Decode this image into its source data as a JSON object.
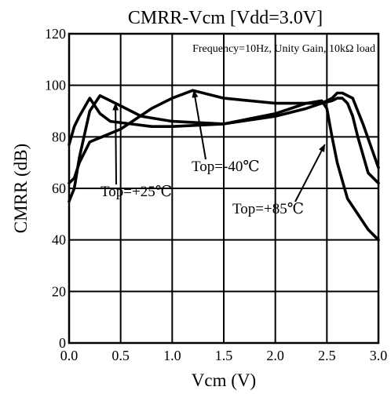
{
  "chart_data": {
    "type": "line",
    "title": "CMRR-Vcm [Vdd=3.0V]",
    "subtitle": "Frequency=10Hz, Unity Gain, 10kΩ load",
    "xlabel": "Vcm (V)",
    "ylabel": "CMRR (dB)",
    "xlim": [
      0.0,
      3.0
    ],
    "ylim": [
      0,
      120
    ],
    "xticks": [
      "0.0",
      "0.5",
      "1.0",
      "1.5",
      "2.0",
      "2.5",
      "3.0"
    ],
    "yticks": [
      "0",
      "20",
      "40",
      "60",
      "80",
      "100",
      "120"
    ],
    "grid": true,
    "series": [
      {
        "name": "Top=-40℃",
        "x": [
          0.0,
          0.05,
          0.1,
          0.2,
          0.5,
          0.8,
          1.0,
          1.2,
          1.5,
          2.0,
          2.3,
          2.45,
          2.55,
          2.6,
          2.65,
          2.7,
          2.75,
          2.8,
          2.85,
          2.9,
          3.0
        ],
        "y": [
          62,
          64,
          70,
          78,
          83,
          91,
          95,
          98,
          95,
          93,
          93,
          93,
          94,
          95,
          95,
          93,
          88,
          80,
          73,
          66,
          62
        ]
      },
      {
        "name": "Top=+25℃",
        "x": [
          0.0,
          0.05,
          0.1,
          0.2,
          0.3,
          0.4,
          0.6,
          0.8,
          1.0,
          1.5,
          2.0,
          2.3,
          2.45,
          2.55,
          2.6,
          2.65,
          2.75,
          2.85,
          3.0
        ],
        "y": [
          77,
          84,
          88,
          95,
          89,
          86,
          85,
          84,
          84,
          85,
          88,
          91,
          93,
          95,
          97,
          97,
          95,
          85,
          68
        ]
      },
      {
        "name": "Top=+85℃",
        "x": [
          0.0,
          0.05,
          0.1,
          0.2,
          0.3,
          0.5,
          0.7,
          1.0,
          1.5,
          2.0,
          2.3,
          2.45,
          2.5,
          2.55,
          2.6,
          2.7,
          2.8,
          2.9,
          3.0
        ],
        "y": [
          55,
          60,
          72,
          90,
          96,
          92,
          88,
          86,
          85,
          89,
          93,
          94,
          91,
          80,
          70,
          56,
          50,
          44,
          40
        ]
      }
    ],
    "annotations": [
      {
        "text": "Top=+25℃",
        "target": [
          0.45,
          93
        ]
      },
      {
        "text": "Top=-40℃",
        "target": [
          1.21,
          98
        ]
      },
      {
        "text": "Top=+85℃",
        "target": [
          2.48,
          77
        ]
      }
    ]
  }
}
